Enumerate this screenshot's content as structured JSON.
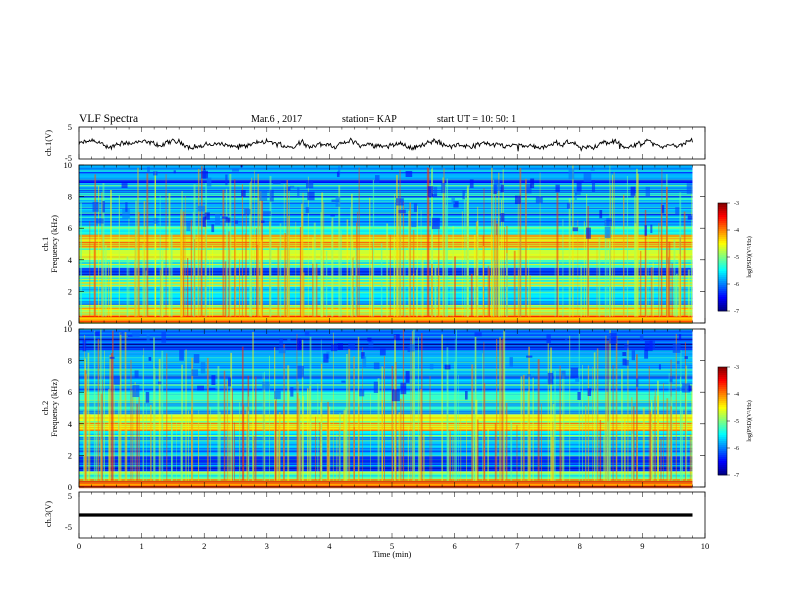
{
  "header": {
    "title": "VLF Spectra",
    "date": "Mar.6 , 2017",
    "station": "station= KAP",
    "start_time": "start  UT =   10: 50: 1"
  },
  "chart_data": [
    {
      "type": "line",
      "panel": "ch1-waveform",
      "ylabel": "ch.1(V)",
      "ylim": [
        -5,
        5
      ],
      "yticks": [
        "5",
        "-5"
      ],
      "xlim": [
        0,
        10
      ],
      "x_extent_min": 9.8,
      "trace_level_approx": -0.5,
      "trace_range_approx": [
        -3,
        2
      ],
      "color": "#000000"
    },
    {
      "type": "heatmap",
      "panel": "ch1-spectrogram",
      "ylabel": "ch.1\nFrequency (kHz)",
      "ylim": [
        0,
        10
      ],
      "yticks": [
        "0",
        "2",
        "4",
        "6",
        "8",
        "10"
      ],
      "xlim": [
        0,
        10
      ],
      "x_extent_min": 9.8,
      "colorbar": {
        "label": "log(PSD)(V²/Hz)",
        "ticks": [
          "-3",
          "-4",
          "-5",
          "-6",
          "-7"
        ],
        "range": [
          -7,
          -3
        ]
      },
      "bands_kHz": [
        {
          "f": [
            0.0,
            0.5
          ],
          "level": -4.2
        },
        {
          "f": [
            0.5,
            1.2
          ],
          "level": -4.8
        },
        {
          "f": [
            1.2,
            2.3
          ],
          "level": -5.6
        },
        {
          "f": [
            2.3,
            3.0
          ],
          "level": -5.0
        },
        {
          "f": [
            3.0,
            3.5
          ],
          "level": -6.2
        },
        {
          "f": [
            3.5,
            4.0
          ],
          "level": -5.3
        },
        {
          "f": [
            4.0,
            5.6
          ],
          "level": -4.7
        },
        {
          "f": [
            5.6,
            6.2
          ],
          "level": -5.4
        },
        {
          "f": [
            6.2,
            10.0
          ],
          "level": -5.8
        }
      ]
    },
    {
      "type": "heatmap",
      "panel": "ch2-spectrogram",
      "ylabel": "ch.2\nFrequency (kHz)",
      "ylim": [
        0,
        10
      ],
      "yticks": [
        "0",
        "2",
        "4",
        "6",
        "8",
        "10"
      ],
      "xlim": [
        0,
        10
      ],
      "x_extent_min": 9.8,
      "colorbar": {
        "label": "log(PSD)(V²/Hz)",
        "ticks": [
          "-3",
          "-4",
          "-5",
          "-6",
          "-7"
        ],
        "range": [
          -7,
          -3
        ]
      },
      "bands_kHz": [
        {
          "f": [
            0.0,
            0.5
          ],
          "level": -3.8
        },
        {
          "f": [
            0.5,
            1.0
          ],
          "level": -5.2
        },
        {
          "f": [
            1.0,
            2.0
          ],
          "level": -6.3
        },
        {
          "f": [
            2.0,
            3.0
          ],
          "level": -5.7
        },
        {
          "f": [
            3.0,
            3.6
          ],
          "level": -5.5
        },
        {
          "f": [
            3.6,
            4.6
          ],
          "level": -4.6
        },
        {
          "f": [
            4.6,
            6.0
          ],
          "level": -5.3
        },
        {
          "f": [
            6.0,
            8.5
          ],
          "level": -5.8
        },
        {
          "f": [
            8.5,
            10.0
          ],
          "level": -6.2
        }
      ]
    },
    {
      "type": "line",
      "panel": "ch3-waveform",
      "ylabel": "ch.3(V)",
      "ylim": [
        -5,
        5
      ],
      "yticks": [
        "5",
        "-5"
      ],
      "xlim": [
        0,
        10
      ],
      "xlabel": "Time (min)",
      "xticks": [
        "0",
        "1",
        "2",
        "3",
        "4",
        "5",
        "6",
        "7",
        "8",
        "9",
        "10"
      ],
      "x_extent_min": 9.8,
      "trace_level_approx": 0,
      "color": "#000000"
    }
  ]
}
